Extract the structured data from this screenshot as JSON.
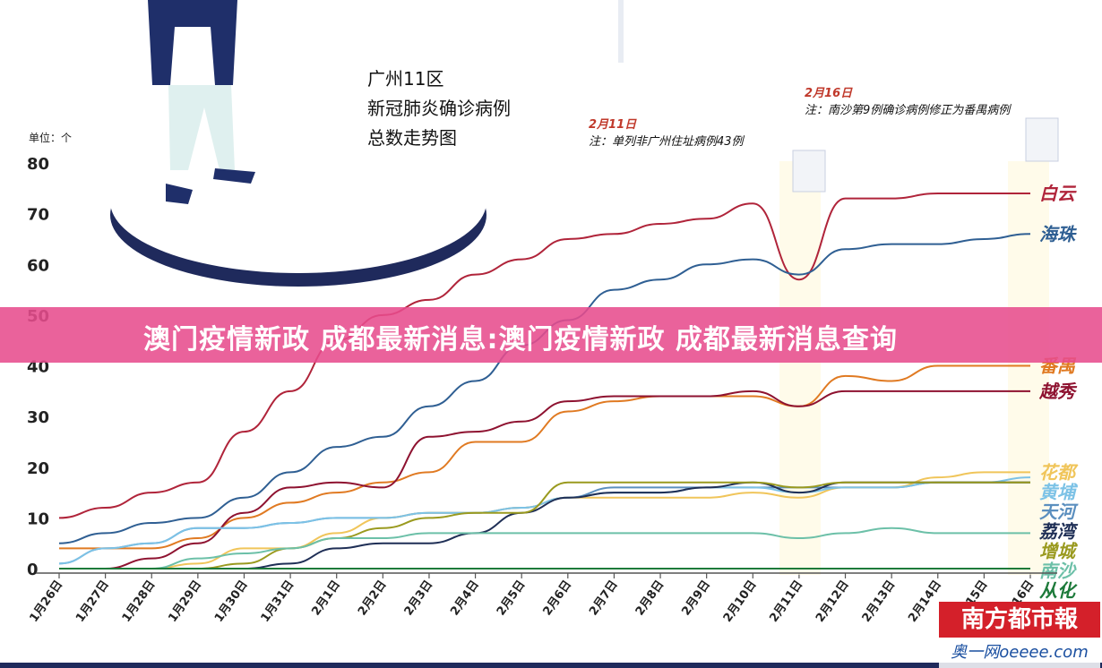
{
  "header": {
    "title_lines": [
      "广州11区",
      "新冠肺炎确诊病例",
      "总数走势图"
    ],
    "unit": "单位：个"
  },
  "annotations": [
    {
      "date": "2月11日",
      "text": "注：单列非广州住址病例43例"
    },
    {
      "date": "2月16日",
      "text": "注：南沙第9例确诊病例修正为番禺病例"
    }
  ],
  "banner": {
    "text": "澳门疫情新政 成都最新消息:澳门疫情新政 成都最新消息查询"
  },
  "branding": {
    "logo": "南方都市報",
    "watermark": "奥一网oeeee.com"
  },
  "chart_data": {
    "type": "line",
    "ylim": [
      0,
      80
    ],
    "yticks": [
      0,
      10,
      20,
      30,
      40,
      50,
      60,
      70,
      80
    ],
    "categories": [
      "1月26日",
      "1月27日",
      "1月28日",
      "1月29日",
      "1月30日",
      "1月31日",
      "2月1日",
      "2月2日",
      "2月3日",
      "2月4日",
      "2月5日",
      "2月6日",
      "2月7日",
      "2月8日",
      "2月9日",
      "2月10日",
      "2月11日",
      "2月12日",
      "2月13日",
      "2月14日",
      "2月15日",
      "2月16日"
    ],
    "series": [
      {
        "name": "白云",
        "color": "#b0243a",
        "values": [
          10,
          12,
          15,
          17,
          27,
          35,
          45,
          50,
          53,
          58,
          61,
          65,
          66,
          68,
          69,
          72,
          57,
          73,
          73,
          74,
          74,
          74
        ]
      },
      {
        "name": "海珠",
        "color": "#2f5f93",
        "values": [
          5,
          7,
          9,
          10,
          14,
          19,
          24,
          26,
          32,
          37,
          44,
          49,
          55,
          57,
          60,
          61,
          58,
          63,
          64,
          64,
          65,
          66
        ]
      },
      {
        "name": "天河",
        "color": "#5b8fbf",
        "values": [
          1,
          4,
          5,
          8,
          8,
          9,
          10,
          10,
          11,
          11,
          12,
          14,
          16,
          16,
          16,
          16,
          16,
          16,
          16,
          17,
          17,
          17
        ]
      },
      {
        "name": "番禺",
        "color": "#e07a22",
        "values": [
          4,
          4,
          4,
          6,
          10,
          13,
          15,
          17,
          19,
          25,
          25,
          31,
          33,
          34,
          34,
          34,
          32,
          38,
          37,
          40,
          40,
          40
        ]
      },
      {
        "name": "越秀",
        "color": "#8e1230",
        "values": [
          0,
          0,
          2,
          5,
          11,
          16,
          17,
          16,
          26,
          27,
          29,
          33,
          34,
          34,
          34,
          35,
          32,
          35,
          35,
          35,
          35,
          35
        ]
      },
      {
        "name": "花都",
        "color": "#f0c55a",
        "values": [
          0,
          0,
          0,
          1,
          4,
          4,
          7,
          10,
          11,
          11,
          12,
          14,
          14,
          14,
          14,
          15,
          14,
          16,
          16,
          18,
          19,
          19
        ]
      },
      {
        "name": "黄埔",
        "color": "#7cc2e6",
        "values": [
          1,
          4,
          5,
          8,
          8,
          9,
          10,
          10,
          11,
          11,
          12,
          14,
          15,
          15,
          16,
          16,
          15,
          16,
          16,
          17,
          17,
          18
        ]
      },
      {
        "name": "荔湾",
        "color": "#1f2f56",
        "values": [
          0,
          0,
          0,
          0,
          0,
          1,
          4,
          5,
          5,
          7,
          11,
          14,
          15,
          15,
          16,
          17,
          15,
          17,
          17,
          17,
          17,
          17
        ]
      },
      {
        "name": "增城",
        "color": "#9a9a1f",
        "values": [
          0,
          0,
          0,
          0,
          1,
          4,
          6,
          8,
          10,
          11,
          11,
          17,
          17,
          17,
          17,
          17,
          16,
          17,
          17,
          17,
          17,
          17
        ]
      },
      {
        "name": "南沙",
        "color": "#6cc0a8",
        "values": [
          0,
          0,
          0,
          2,
          3,
          4,
          6,
          6,
          7,
          7,
          7,
          7,
          7,
          7,
          7,
          7,
          6,
          7,
          8,
          7,
          7,
          7
        ]
      },
      {
        "name": "从化",
        "color": "#1d7a3a",
        "values": [
          0,
          0,
          0,
          0,
          0,
          0,
          0,
          0,
          0,
          0,
          0,
          0,
          0,
          0,
          0,
          0,
          0,
          0,
          0,
          0,
          0,
          0
        ]
      }
    ]
  }
}
